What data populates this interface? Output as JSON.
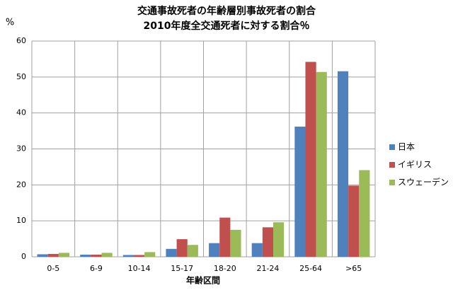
{
  "chart_data": {
    "type": "bar",
    "title": "交通事故死者の年齢層別事故死者の割合",
    "subtitle": "2010年度全交通死者に対する割合％",
    "y_label": "%",
    "x_label": "年齢区間",
    "categories": [
      "0-5",
      "6-9",
      "10-14",
      "15-17",
      "18-20",
      "21-24",
      "25-64",
      ">65"
    ],
    "series": [
      {
        "name": "日本",
        "color": "#4f81bd",
        "values": [
          0.7,
          0.6,
          0.5,
          2.2,
          3.8,
          3.8,
          36.2,
          51.6
        ]
      },
      {
        "name": "イギリス",
        "color": "#c0504d",
        "values": [
          0.8,
          0.6,
          0.5,
          4.9,
          10.9,
          8.2,
          54.2,
          19.8
        ]
      },
      {
        "name": "スウェーデン",
        "color": "#9bbb59",
        "values": [
          1.1,
          1.1,
          1.3,
          3.3,
          7.5,
          9.6,
          51.4,
          24.1
        ]
      }
    ],
    "ylim": [
      0,
      60
    ],
    "yticks": [
      0,
      10,
      20,
      30,
      40,
      50,
      60
    ],
    "grid": true,
    "legend": "right"
  }
}
